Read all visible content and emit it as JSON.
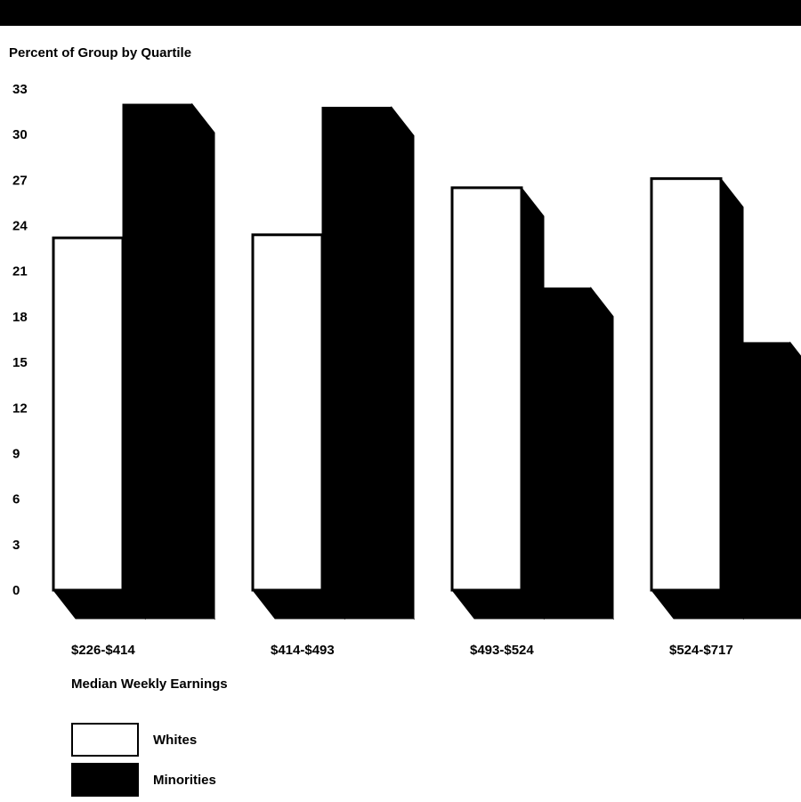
{
  "chart_data": {
    "type": "bar",
    "ylabel": "Percent of Group by Quartile",
    "xlabel": "Median Weekly Earnings",
    "categories": [
      "$226-$414",
      "$414-$493",
      "$493-$524",
      "$524-$717"
    ],
    "series": [
      {
        "name": "Whites",
        "values": [
          23.2,
          23.4,
          26.5,
          27.1
        ],
        "color": "#ffffff"
      },
      {
        "name": "Minorities",
        "values": [
          32.0,
          31.8,
          19.9,
          16.3
        ],
        "color": "#000000"
      }
    ],
    "ylim": [
      0,
      33
    ],
    "yticks": [
      0,
      3,
      6,
      9,
      12,
      15,
      18,
      21,
      24,
      27,
      30,
      33
    ],
    "style": "3d-bar",
    "grid": false,
    "legend": "bottom-left"
  },
  "legend": {
    "items": [
      {
        "label": "Whites",
        "color": "#ffffff"
      },
      {
        "label": "Minorities",
        "color": "#000000"
      }
    ]
  }
}
